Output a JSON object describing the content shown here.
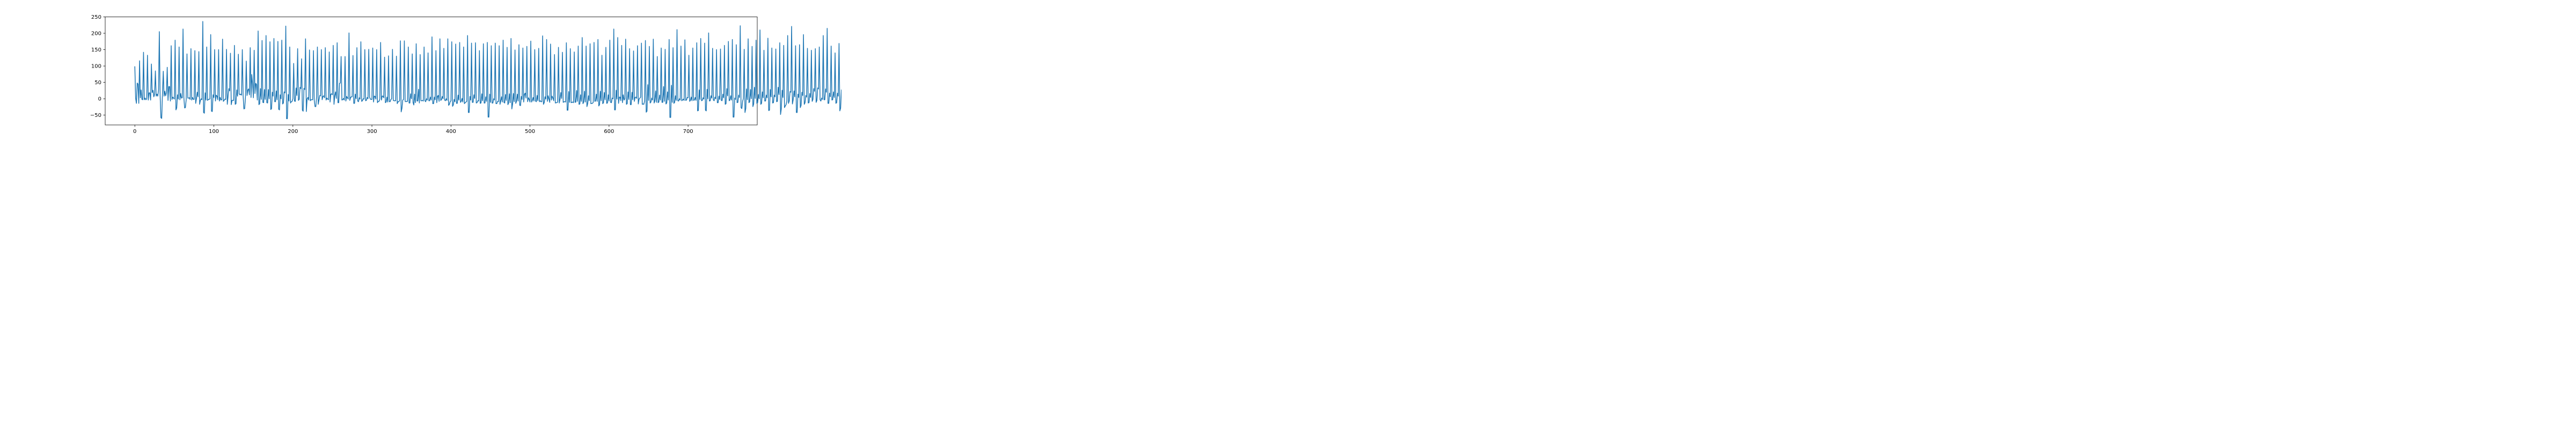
{
  "chart_data": {
    "type": "line",
    "title": "",
    "xlabel": "",
    "ylabel": "",
    "xlim": [
      -37.5,
      787.5
    ],
    "ylim": [
      -80,
      250
    ],
    "xticks": [
      0,
      100,
      200,
      300,
      400,
      500,
      600,
      700
    ],
    "yticks": [
      -50,
      0,
      50,
      100,
      150,
      200,
      250
    ],
    "grid": false,
    "legend": "none",
    "series": [
      {
        "color": "#1f77b4",
        "x_start": 0,
        "x_step": 1,
        "values": [
          99,
          2,
          -14,
          48,
          45,
          -14,
          116,
          3,
          27,
          -2,
          -3,
          142,
          -3,
          2,
          -3,
          0,
          133,
          -4,
          18,
          18,
          -4,
          106,
          19,
          26,
          6,
          13,
          85,
          8,
          14,
          8,
          27,
          205,
          11,
          -58,
          -60,
          18,
          84,
          8,
          23,
          9,
          18,
          96,
          -5,
          37,
          37,
          -7,
          162,
          -2,
          5,
          2,
          -1,
          179,
          -34,
          -28,
          12,
          -1,
          158,
          -3,
          16,
          2,
          3,
          213,
          5,
          -28,
          -27,
          -2,
          137,
          2,
          2,
          3,
          -2,
          153,
          -4,
          4,
          -2,
          -2,
          147,
          -14,
          1,
          20,
          6,
          144,
          -17,
          -5,
          0,
          -3,
          236,
          -42,
          -44,
          18,
          -4,
          158,
          -5,
          -2,
          -2,
          0,
          196,
          -38,
          -39,
          12,
          4,
          150,
          -7,
          11,
          8,
          -3,
          150,
          -7,
          4,
          -4,
          -3,
          182,
          -8,
          -5,
          -1,
          -2,
          151,
          -17,
          8,
          31,
          24,
          139,
          -18,
          -5,
          -5,
          -5,
          163,
          -17,
          -15,
          27,
          8,
          136,
          15,
          12,
          14,
          11,
          150,
          11,
          -31,
          -30,
          6,
          115,
          10,
          27,
          30,
          12,
          156,
          4,
          74,
          45,
          3,
          148,
          16,
          47,
          43,
          -4,
          207,
          -18,
          -15,
          31,
          -2,
          178,
          -11,
          -12,
          28,
          -2,
          193,
          -12,
          -13,
          28,
          0,
          174,
          -33,
          -30,
          20,
          8,
          184,
          -9,
          -9,
          24,
          -3,
          175,
          -32,
          -34,
          12,
          0,
          179,
          -16,
          -13,
          21,
          18,
          222,
          -61,
          -61,
          13,
          -7,
          158,
          -13,
          -9,
          -8,
          0,
          108,
          -7,
          -8,
          33,
          10,
          153,
          -5,
          -2,
          35,
          31,
          122,
          -35,
          -38,
          32,
          28,
          183,
          -39,
          0,
          4,
          -4,
          149,
          -6,
          -3,
          -3,
          -3,
          147,
          -5,
          -24,
          -24,
          7,
          158,
          -17,
          -4,
          10,
          9,
          150,
          -3,
          7,
          9,
          3,
          156,
          -4,
          2,
          -1,
          -3,
          143,
          -10,
          14,
          15,
          12,
          163,
          -17,
          9,
          21,
          1,
          171,
          -12,
          -12,
          47,
          48,
          129,
          -4,
          -3,
          1,
          -4,
          129,
          -7,
          7,
          3,
          -1,
          201,
          -5,
          4,
          6,
          6,
          132,
          -14,
          -14,
          14,
          0,
          156,
          -7,
          -9,
          3,
          -1,
          174,
          -8,
          -6,
          0,
          -1,
          150,
          -6,
          -5,
          4,
          0,
          151,
          5,
          -1,
          -2,
          -2,
          155,
          -10,
          8,
          7,
          -1,
          150,
          -12,
          -8,
          -8,
          -1,
          172,
          -4,
          8,
          8,
          3,
          127,
          -12,
          -10,
          5,
          -10,
          131,
          -9,
          -9,
          -2,
          0,
          151,
          -5,
          -6,
          -6,
          -6,
          130,
          -15,
          -9,
          -9,
          -5,
          177,
          -40,
          -29,
          -4,
          -2,
          177,
          -8,
          -9,
          -8,
          -8,
          158,
          -13,
          -13,
          15,
          0,
          137,
          -11,
          -19,
          14,
          -12,
          168,
          -7,
          -7,
          29,
          -13,
          135,
          -6,
          -6,
          -5,
          -7,
          158,
          -6,
          -9,
          0,
          -4,
          140,
          -6,
          -6,
          5,
          -4,
          189,
          -15,
          -15,
          5,
          -3,
          147,
          -12,
          8,
          10,
          -8,
          183,
          -5,
          -3,
          7,
          0,
          154,
          -4,
          -6,
          0,
          -5,
          183,
          -20,
          -17,
          -9,
          -6,
          174,
          -23,
          -19,
          -2,
          -9,
          167,
          -14,
          -14,
          11,
          -4,
          172,
          -11,
          -8,
          1,
          -10,
          158,
          -15,
          -12,
          -10,
          -8,
          193,
          -42,
          -42,
          7,
          -4,
          170,
          -11,
          -11,
          12,
          1,
          171,
          -13,
          -12,
          -6,
          -7,
          147,
          -14,
          -13,
          15,
          -6,
          168,
          -13,
          -13,
          6,
          -8,
          172,
          -56,
          -56,
          14,
          -11,
          162,
          -13,
          -13,
          0,
          -4,
          170,
          -15,
          -15,
          -8,
          -9,
          162,
          -17,
          -7,
          6,
          -10,
          179,
          -11,
          -13,
          13,
          -5,
          157,
          -18,
          -13,
          15,
          -12,
          184,
          -31,
          -16,
          16,
          -9,
          149,
          -14,
          -7,
          14,
          -7,
          165,
          -20,
          -21,
          7,
          -2,
          155,
          -10,
          14,
          17,
          2,
          160,
          -9,
          3,
          -2,
          -10,
          176,
          -10,
          -5,
          4,
          -7,
          150,
          -7,
          -9,
          10,
          -6,
          154,
          -9,
          -6,
          -9,
          -9,
          192,
          -17,
          -12,
          6,
          -1,
          181,
          -8,
          9,
          -1,
          -11,
          167,
          -4,
          8,
          2,
          -6,
          135,
          -13,
          -12,
          -12,
          -10,
          157,
          -13,
          -2,
          19,
          1,
          142,
          -11,
          -9,
          -9,
          -10,
          171,
          -35,
          -35,
          22,
          -11,
          153,
          -12,
          -11,
          -10,
          -12,
          143,
          -11,
          -10,
          25,
          -8,
          161,
          -17,
          -16,
          12,
          -8,
          187,
          -15,
          -10,
          23,
          -10,
          161,
          -24,
          -15,
          9,
          -6,
          168,
          -15,
          -14,
          -14,
          -11,
          172,
          -8,
          -7,
          14,
          -8,
          181,
          -22,
          -18,
          23,
          -6,
          133,
          -15,
          -12,
          19,
          -3,
          157,
          -14,
          -13,
          12,
          -7,
          179,
          -11,
          -12,
          2,
          0,
          213,
          -34,
          -34,
          26,
          -1,
          187,
          -14,
          5,
          5,
          -6,
          163,
          -12,
          12,
          -4,
          0,
          182,
          -17,
          -15,
          21,
          -2,
          153,
          -18,
          -18,
          20,
          -3,
          146,
          -8,
          4,
          5,
          1,
          162,
          -16,
          -1,
          2,
          5,
          170,
          -17,
          -16,
          -17,
          -7,
          178,
          -41,
          -38,
          43,
          -5,
          160,
          -13,
          -10,
          2,
          -4,
          182,
          -13,
          -7,
          24,
          -11,
          129,
          -12,
          -10,
          11,
          -4,
          155,
          -11,
          -11,
          37,
          -8,
          151,
          -16,
          -13,
          21,
          -4,
          181,
          -57,
          -57,
          41,
          -11,
          156,
          -14,
          -11,
          9,
          -5,
          211,
          -6,
          -7,
          0,
          -4,
          161,
          -6,
          -4,
          -1,
          -5,
          180,
          -5,
          -4,
          4,
          3,
          133,
          -8,
          -5,
          5,
          -6,
          155,
          -5,
          -4,
          4,
          -5,
          171,
          -37,
          -36,
          27,
          -2,
          184,
          -6,
          -5,
          3,
          -1,
          170,
          -35,
          -37,
          29,
          0,
          201,
          -7,
          -6,
          9,
          2,
          154,
          -4,
          -6,
          5,
          0,
          150,
          -12,
          -12,
          8,
          -2,
          152,
          -5,
          -6,
          14,
          3,
          163,
          -17,
          -15,
          31,
          9,
          175,
          -6,
          -4,
          9,
          -4,
          181,
          -56,
          -56,
          2,
          -2,
          165,
          -12,
          -11,
          11,
          4,
          223,
          -27,
          -30,
          -8,
          1,
          151,
          -42,
          -30,
          30,
          -3,
          183,
          -12,
          -9,
          28,
          0,
          160,
          -24,
          -16,
          35,
          1,
          179,
          -14,
          -12,
          13,
          0,
          210,
          -17,
          -14,
          21,
          3,
          148,
          -7,
          -7,
          11,
          3,
          185,
          -36,
          -35,
          28,
          6,
          155,
          -13,
          -12,
          11,
          6,
          152,
          -9,
          -8,
          35,
          13,
          171,
          -48,
          -30,
          26,
          4,
          163,
          -27,
          -22,
          -18,
          -7,
          193,
          -14,
          -7,
          22,
          20,
          221,
          -16,
          -3,
          24,
          6,
          162,
          -42,
          -42,
          14,
          4,
          165,
          -27,
          -20,
          20,
          10,
          196,
          -17,
          -12,
          10,
          5,
          154,
          -13,
          -12,
          16,
          4,
          148,
          -8,
          -2,
          31,
          23,
          153,
          -11,
          -5,
          33,
          30,
          158,
          -3,
          -7,
          2,
          -2,
          193,
          -3,
          -3,
          30,
          20,
          215,
          -14,
          -14,
          17,
          6,
          161,
          -4,
          -3,
          21,
          4,
          140,
          -14,
          -12,
          17,
          8,
          169,
          -37,
          -29,
          27,
          3,
          165,
          -22,
          -18,
          25,
          30,
          233,
          -58,
          -58,
          -7,
          -2,
          160,
          -8,
          -3,
          0,
          5
        ]
      }
    ]
  }
}
